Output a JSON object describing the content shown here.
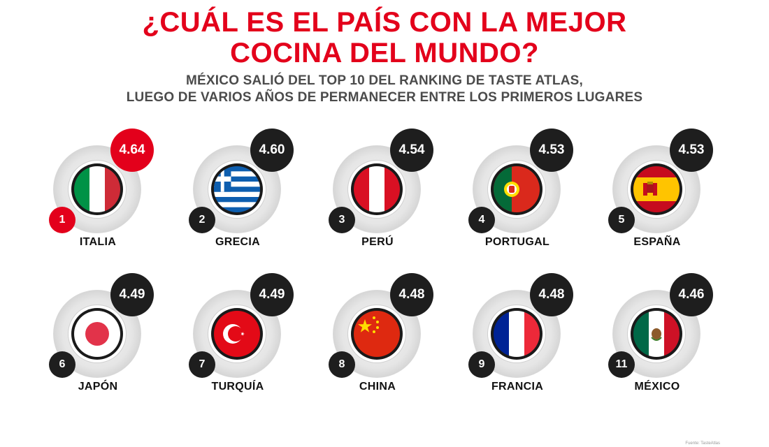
{
  "header": {
    "title_line1": "¿CUÁL ES EL PAÍS CON LA MEJOR",
    "title_line2": "COCINA DEL MUNDO?",
    "subtitle_line1": "MÉXICO SALIÓ DEL TOP 10 DEL RANKING DE TASTE ATLAS,",
    "subtitle_line2": "LUEGO DE VARIOS AÑOS DE PERMANECER ENTRE LOS PRIMEROS LUGARES"
  },
  "colors": {
    "accent": "#e3001b",
    "badge_dark": "#1e1e1e"
  },
  "countries": [
    {
      "rank": "1",
      "name": "ITALIA",
      "score": "4.64",
      "flag": "italy-flag-icon",
      "highlight": true
    },
    {
      "rank": "2",
      "name": "GRECIA",
      "score": "4.60",
      "flag": "greece-flag-icon",
      "highlight": false
    },
    {
      "rank": "3",
      "name": "PERÚ",
      "score": "4.54",
      "flag": "peru-flag-icon",
      "highlight": false
    },
    {
      "rank": "4",
      "name": "PORTUGAL",
      "score": "4.53",
      "flag": "portugal-flag-icon",
      "highlight": false
    },
    {
      "rank": "5",
      "name": "ESPAÑA",
      "score": "4.53",
      "flag": "spain-flag-icon",
      "highlight": false
    },
    {
      "rank": "6",
      "name": "JAPÓN",
      "score": "4.49",
      "flag": "japan-flag-icon",
      "highlight": false
    },
    {
      "rank": "7",
      "name": "TURQUÍA",
      "score": "4.49",
      "flag": "turkey-flag-icon",
      "highlight": false
    },
    {
      "rank": "8",
      "name": "CHINA",
      "score": "4.48",
      "flag": "china-flag-icon",
      "highlight": false
    },
    {
      "rank": "9",
      "name": "FRANCIA",
      "score": "4.48",
      "flag": "france-flag-icon",
      "highlight": false
    },
    {
      "rank": "11",
      "name": "MÉXICO",
      "score": "4.46",
      "flag": "mexico-flag-icon",
      "highlight": false
    }
  ],
  "footer": {
    "source": "Fuente: TasteAtlas"
  }
}
